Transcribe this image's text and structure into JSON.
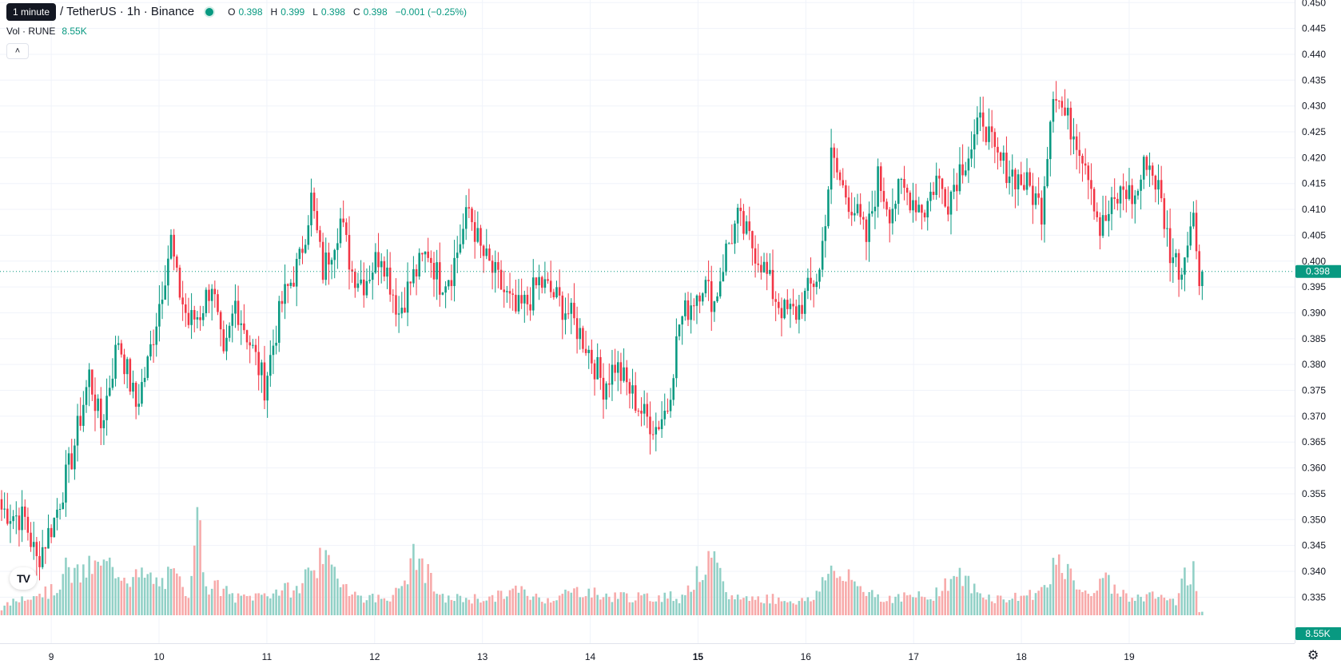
{
  "legend": {
    "tooltip": "1 minute",
    "symbol": "/ TetherUS · 1h · Binance",
    "o_label": "O",
    "o_value": "0.398",
    "h_label": "H",
    "h_value": "0.399",
    "l_label": "L",
    "l_value": "0.398",
    "c_label": "C",
    "c_value": "0.398",
    "change": "−0.001 (−0.25%)"
  },
  "volume_legend": {
    "label": "Vol · RUNE",
    "value": "8.55K"
  },
  "collapse_icon": "chevron-up-icon",
  "logo_text": "TV",
  "settings_icon": "gear-icon",
  "colors": {
    "up": "#089981",
    "down": "#f23645",
    "up_volume": "#91d0c6",
    "down_volume": "#f7a9a9",
    "grid": "#f0f3fa"
  },
  "chart_data": {
    "type": "candlestick",
    "price_axis_ticks": [
      "0.335",
      "0.340",
      "0.345",
      "0.350",
      "0.355",
      "0.360",
      "0.365",
      "0.370",
      "0.375",
      "0.380",
      "0.385",
      "0.390",
      "0.395",
      "0.400",
      "0.405",
      "0.410",
      "0.415",
      "0.420",
      "0.425",
      "0.430",
      "0.435",
      "0.440",
      "0.445",
      "0.450"
    ],
    "time_axis_labels": [
      "9",
      "10",
      "11",
      "12",
      "13",
      "14",
      "15",
      "16",
      "17",
      "18",
      "19"
    ],
    "bold_time_label": "15",
    "ylim": [
      0.3315,
      0.4505
    ],
    "last_price": "0.398",
    "last_volume": "8.55K",
    "series_path": [
      [
        0,
        0.352
      ],
      [
        8,
        0.35
      ],
      [
        12,
        0.342
      ],
      [
        18,
        0.35
      ],
      [
        24,
        0.362
      ],
      [
        30,
        0.378
      ],
      [
        34,
        0.368
      ],
      [
        40,
        0.385
      ],
      [
        46,
        0.372
      ],
      [
        50,
        0.38
      ],
      [
        54,
        0.392
      ],
      [
        58,
        0.404
      ],
      [
        60,
        0.396
      ],
      [
        64,
        0.388
      ],
      [
        68,
        0.39
      ],
      [
        72,
        0.396
      ],
      [
        76,
        0.38
      ],
      [
        80,
        0.392
      ],
      [
        84,
        0.386
      ],
      [
        90,
        0.376
      ],
      [
        96,
        0.392
      ],
      [
        102,
        0.4
      ],
      [
        106,
        0.412
      ],
      [
        110,
        0.398
      ],
      [
        116,
        0.408
      ],
      [
        120,
        0.398
      ],
      [
        124,
        0.396
      ],
      [
        130,
        0.402
      ],
      [
        136,
        0.39
      ],
      [
        140,
        0.396
      ],
      [
        146,
        0.402
      ],
      [
        150,
        0.396
      ],
      [
        154,
        0.398
      ],
      [
        160,
        0.41
      ],
      [
        164,
        0.402
      ],
      [
        170,
        0.396
      ],
      [
        176,
        0.39
      ],
      [
        180,
        0.392
      ],
      [
        184,
        0.396
      ],
      [
        188,
        0.394
      ],
      [
        194,
        0.39
      ],
      [
        200,
        0.384
      ],
      [
        206,
        0.376
      ],
      [
        210,
        0.38
      ],
      [
        216,
        0.374
      ],
      [
        220,
        0.37
      ],
      [
        224,
        0.368
      ],
      [
        228,
        0.372
      ],
      [
        232,
        0.388
      ],
      [
        236,
        0.392
      ],
      [
        240,
        0.396
      ],
      [
        244,
        0.392
      ],
      [
        248,
        0.402
      ],
      [
        252,
        0.408
      ],
      [
        256,
        0.404
      ],
      [
        260,
        0.4
      ],
      [
        264,
        0.394
      ],
      [
        268,
        0.39
      ],
      [
        272,
        0.39
      ],
      [
        276,
        0.394
      ],
      [
        280,
        0.398
      ],
      [
        284,
        0.42
      ],
      [
        288,
        0.414
      ],
      [
        292,
        0.41
      ],
      [
        296,
        0.404
      ],
      [
        300,
        0.416
      ],
      [
        304,
        0.41
      ],
      [
        308,
        0.414
      ],
      [
        312,
        0.412
      ],
      [
        316,
        0.41
      ],
      [
        320,
        0.416
      ],
      [
        324,
        0.412
      ],
      [
        328,
        0.418
      ],
      [
        332,
        0.422
      ],
      [
        336,
        0.428
      ],
      [
        340,
        0.42
      ],
      [
        344,
        0.418
      ],
      [
        348,
        0.416
      ],
      [
        352,
        0.414
      ],
      [
        356,
        0.41
      ],
      [
        360,
        0.434
      ],
      [
        364,
        0.428
      ],
      [
        368,
        0.424
      ],
      [
        372,
        0.418
      ],
      [
        376,
        0.406
      ],
      [
        380,
        0.41
      ],
      [
        384,
        0.414
      ],
      [
        388,
        0.412
      ],
      [
        392,
        0.42
      ],
      [
        396,
        0.414
      ],
      [
        400,
        0.402
      ],
      [
        404,
        0.398
      ],
      [
        406,
        0.406
      ],
      [
        408,
        0.408
      ],
      [
        410,
        0.398
      ]
    ],
    "volume_peaks": [
      [
        0,
        0.05
      ],
      [
        10,
        0.16
      ],
      [
        18,
        0.17
      ],
      [
        22,
        0.32
      ],
      [
        26,
        0.28
      ],
      [
        30,
        0.33
      ],
      [
        38,
        0.35
      ],
      [
        44,
        0.27
      ],
      [
        50,
        0.27
      ],
      [
        54,
        0.22
      ],
      [
        58,
        0.28
      ],
      [
        60,
        0.25
      ],
      [
        64,
        0.16
      ],
      [
        66,
        0.65
      ],
      [
        68,
        0.58
      ],
      [
        70,
        0.22
      ],
      [
        76,
        0.18
      ],
      [
        80,
        0.12
      ],
      [
        88,
        0.14
      ],
      [
        96,
        0.18
      ],
      [
        102,
        0.18
      ],
      [
        106,
        0.38
      ],
      [
        110,
        0.37
      ],
      [
        114,
        0.31
      ],
      [
        122,
        0.13
      ],
      [
        130,
        0.12
      ],
      [
        136,
        0.16
      ],
      [
        142,
        0.44
      ],
      [
        146,
        0.28
      ],
      [
        150,
        0.12
      ],
      [
        160,
        0.12
      ],
      [
        168,
        0.12
      ],
      [
        176,
        0.18
      ],
      [
        184,
        0.12
      ],
      [
        188,
        0.12
      ],
      [
        196,
        0.17
      ],
      [
        200,
        0.18
      ],
      [
        206,
        0.13
      ],
      [
        212,
        0.14
      ],
      [
        220,
        0.12
      ],
      [
        228,
        0.14
      ],
      [
        232,
        0.12
      ],
      [
        240,
        0.32
      ],
      [
        244,
        0.38
      ],
      [
        248,
        0.14
      ],
      [
        256,
        0.12
      ],
      [
        264,
        0.12
      ],
      [
        272,
        0.1
      ],
      [
        278,
        0.11
      ],
      [
        282,
        0.32
      ],
      [
        286,
        0.28
      ],
      [
        290,
        0.25
      ],
      [
        296,
        0.18
      ],
      [
        302,
        0.12
      ],
      [
        310,
        0.13
      ],
      [
        318,
        0.13
      ],
      [
        326,
        0.28
      ],
      [
        330,
        0.25
      ],
      [
        334,
        0.16
      ],
      [
        340,
        0.12
      ],
      [
        346,
        0.12
      ],
      [
        350,
        0.14
      ],
      [
        356,
        0.17
      ],
      [
        360,
        0.36
      ],
      [
        364,
        0.3
      ],
      [
        368,
        0.24
      ],
      [
        372,
        0.12
      ],
      [
        376,
        0.28
      ],
      [
        380,
        0.2
      ],
      [
        384,
        0.15
      ],
      [
        390,
        0.12
      ],
      [
        396,
        0.14
      ],
      [
        400,
        0.11
      ],
      [
        402,
        0.1
      ],
      [
        404,
        0.34
      ],
      [
        406,
        0.26
      ],
      [
        408,
        0.36
      ],
      [
        410,
        0.02
      ]
    ]
  }
}
